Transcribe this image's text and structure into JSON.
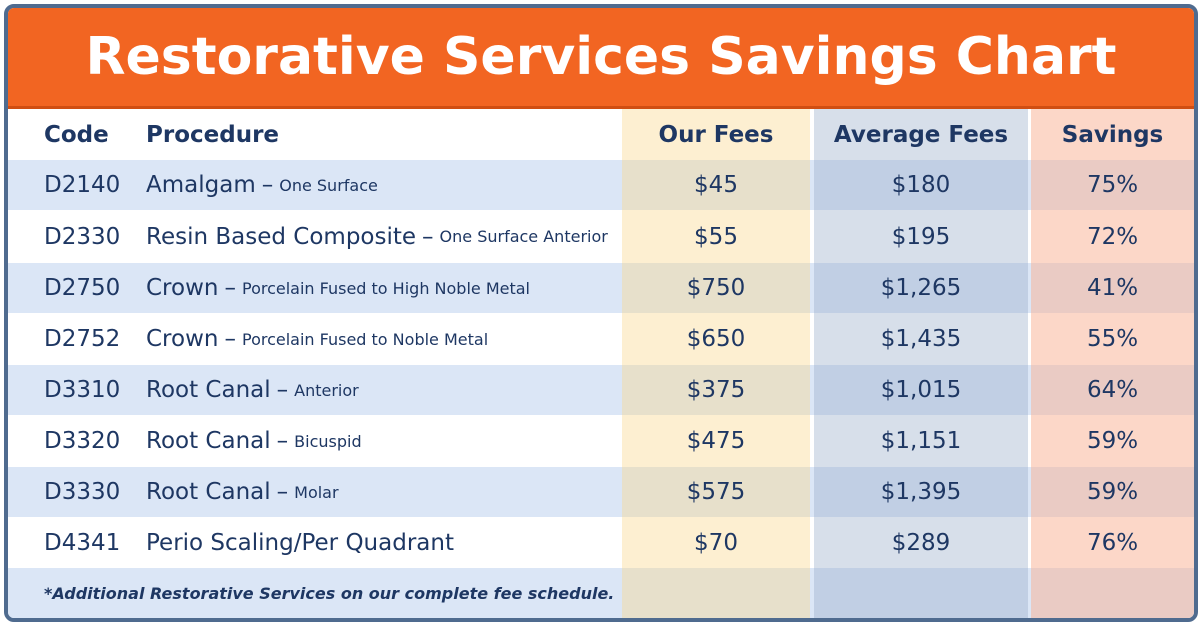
{
  "title": "Restorative Services Savings Chart",
  "colors": {
    "banner": "#f26522",
    "text": "#1e3763",
    "row_alt": "#dbe6f6",
    "border": "#4f6b8f"
  },
  "headers": {
    "code": "Code",
    "procedure": "Procedure",
    "our_fees": "Our Fees",
    "average_fees": "Average Fees",
    "savings": "Savings"
  },
  "rows": [
    {
      "code": "D2140",
      "procedure": "Amalgam",
      "detail": "One Surface",
      "our_fee": "$45",
      "average_fee": "$180",
      "savings": "75%"
    },
    {
      "code": "D2330",
      "procedure": "Resin Based Composite",
      "detail": "One Surface Anterior",
      "our_fee": "$55",
      "average_fee": "$195",
      "savings": "72%"
    },
    {
      "code": "D2750",
      "procedure": "Crown",
      "detail": "Porcelain Fused to High Noble Metal",
      "our_fee": "$750",
      "average_fee": "$1,265",
      "savings": "41%"
    },
    {
      "code": "D2752",
      "procedure": "Crown",
      "detail": "Porcelain Fused to Noble Metal",
      "our_fee": "$650",
      "average_fee": "$1,435",
      "savings": "55%"
    },
    {
      "code": "D3310",
      "procedure": "Root Canal",
      "detail": "Anterior",
      "our_fee": "$375",
      "average_fee": "$1,015",
      "savings": "64%"
    },
    {
      "code": "D3320",
      "procedure": "Root Canal",
      "detail": "Bicuspid",
      "our_fee": "$475",
      "average_fee": "$1,151",
      "savings": "59%"
    },
    {
      "code": "D3330",
      "procedure": "Root Canal",
      "detail": "Molar",
      "our_fee": "$575",
      "average_fee": "$1,395",
      "savings": "59%"
    },
    {
      "code": "D4341",
      "procedure": "Perio Scaling/Per Quadrant",
      "detail": "",
      "our_fee": "$70",
      "average_fee": "$289",
      "savings": "76%"
    }
  ],
  "dash": "–",
  "footnote": "*Additional Restorative Services on our complete fee schedule."
}
